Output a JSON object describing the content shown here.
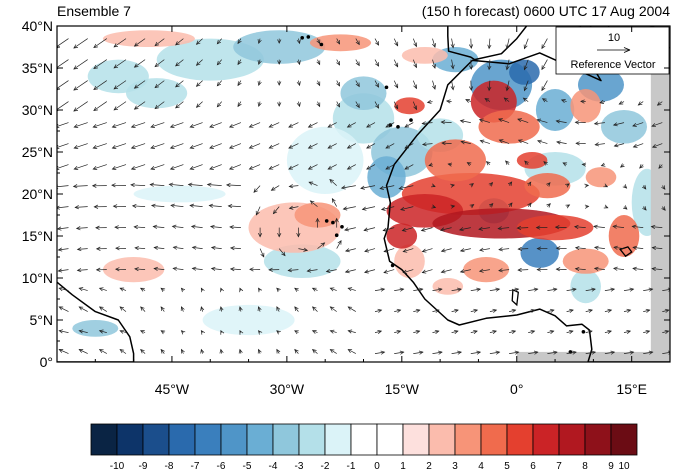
{
  "title_left": "Ensemble 7",
  "title_right": "(150 h forecast) 0600 UTC 17 Aug 2004",
  "reference": {
    "magnitude": "10",
    "label": "Reference Vector"
  },
  "lat_labels": [
    "40°N",
    "35°N",
    "30°N",
    "25°N",
    "20°N",
    "15°N",
    "10°N",
    "5°N",
    "0°"
  ],
  "lon_labels": [
    "45°W",
    "30°W",
    "15°W",
    "0°",
    "15°E"
  ],
  "colorbar": {
    "labels": [
      "-10",
      "-9",
      "-8",
      "-7",
      "-6",
      "-5",
      "-4",
      "-3",
      "-2",
      "-1",
      "0",
      "1",
      "2",
      "3",
      "4",
      "5",
      "6",
      "7",
      "8",
      "9",
      "10"
    ],
    "colors": [
      "#0a2444",
      "#0d3469",
      "#1b4e8c",
      "#2a6aad",
      "#3a7fbd",
      "#4f95c8",
      "#6aaed4",
      "#8fc7dc",
      "#b4e0e9",
      "#dbf3f8",
      "#ffffff",
      "#ffffff",
      "#fde0dd",
      "#fbbcad",
      "#f79478",
      "#f06b4d",
      "#e4402f",
      "#cb2326",
      "#b11820",
      "#8e111a",
      "#6b0c14"
    ]
  },
  "map_extent": {
    "lon_min": -60,
    "lon_max": 20,
    "lat_min": 0,
    "lat_max": 40
  },
  "colors": {
    "land_gray": "#c8c8c8",
    "coast": "#000000",
    "arrow": "#202020"
  }
}
